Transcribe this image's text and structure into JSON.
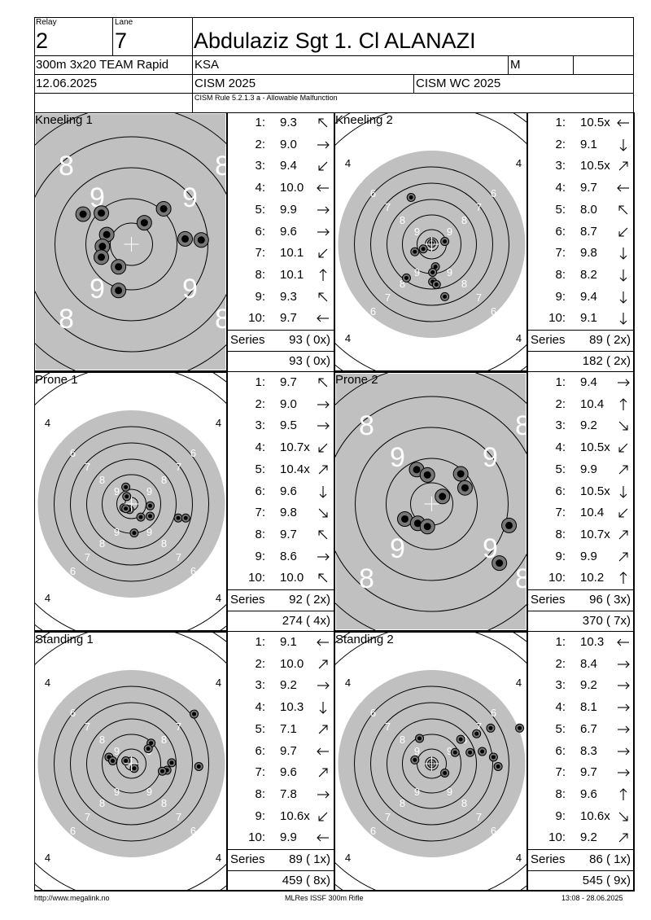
{
  "header": {
    "relay_label": "Relay",
    "relay": "2",
    "lane_label": "Lane",
    "lane": "7",
    "name": "Abdulaziz Sgt 1. Cl ALANAZI",
    "event": "300m 3x20 TEAM Rapid",
    "nation": "KSA",
    "gender": "M",
    "date": "12.06.2025",
    "competition": "CISM 2025",
    "championship": "CISM WC 2025",
    "rule_note": "CISM Rule 5.2.1.3 a - Allowable Malfunction"
  },
  "series_label": "Series",
  "positions": [
    {
      "label": "Kneeling 1",
      "target": "rapid",
      "shots": [
        {
          "n": "1:",
          "v": "9.3",
          "dir": "nw"
        },
        {
          "n": "2:",
          "v": "9.0",
          "dir": "e"
        },
        {
          "n": "3:",
          "v": "9.4",
          "dir": "sw"
        },
        {
          "n": "4:",
          "v": "10.0",
          "dir": "w"
        },
        {
          "n": "5:",
          "v": "9.9",
          "dir": "e"
        },
        {
          "n": "6:",
          "v": "9.6",
          "dir": "e"
        },
        {
          "n": "7:",
          "v": "10.1",
          "dir": "sw"
        },
        {
          "n": "8:",
          "v": "10.1",
          "dir": "n"
        },
        {
          "n": "9:",
          "v": "9.3",
          "dir": "nw"
        },
        {
          "n": "10:",
          "v": "9.7",
          "dir": "w"
        }
      ],
      "series": "93 ( 0x)",
      "total": "93 ( 0x)",
      "hits": [
        [
          -0.28,
          -0.29
        ],
        [
          0.3,
          -0.33
        ],
        [
          -0.45,
          -0.28
        ],
        [
          -0.23,
          -0.09
        ],
        [
          0.12,
          -0.2
        ],
        [
          0.5,
          -0.05
        ],
        [
          -0.27,
          0.02
        ],
        [
          0.65,
          -0.04
        ],
        [
          -0.12,
          0.21
        ],
        [
          -0.12,
          0.43
        ],
        [
          -0.28,
          0.12
        ]
      ]
    },
    {
      "label": "Kneeling 2",
      "target": "std",
      "shots": [
        {
          "n": "1:",
          "v": "10.5x",
          "dir": "w"
        },
        {
          "n": "2:",
          "v": "9.1",
          "dir": "s"
        },
        {
          "n": "3:",
          "v": "10.5x",
          "dir": "ne"
        },
        {
          "n": "4:",
          "v": "9.7",
          "dir": "w"
        },
        {
          "n": "5:",
          "v": "8.0",
          "dir": "nw"
        },
        {
          "n": "6:",
          "v": "8.7",
          "dir": "sw"
        },
        {
          "n": "7:",
          "v": "9.8",
          "dir": "s"
        },
        {
          "n": "8:",
          "v": "8.2",
          "dir": "s"
        },
        {
          "n": "9:",
          "v": "9.4",
          "dir": "s"
        },
        {
          "n": "10:",
          "v": "9.1",
          "dir": "s"
        }
      ],
      "series": "89 ( 2x)",
      "total": "182 ( 2x)",
      "hits": [
        [
          -0.22,
          -0.5
        ],
        [
          0.14,
          -0.03
        ],
        [
          0.0,
          -0.01
        ],
        [
          -0.09,
          0.05
        ],
        [
          -0.18,
          0.08
        ],
        [
          0.04,
          0.24
        ],
        [
          0.01,
          0.3
        ],
        [
          -0.27,
          0.36
        ],
        [
          0.01,
          0.4
        ],
        [
          0.05,
          0.43
        ],
        [
          0.14,
          0.56
        ]
      ]
    },
    {
      "label": "Prone 1",
      "target": "std",
      "shots": [
        {
          "n": "1:",
          "v": "9.7",
          "dir": "nw"
        },
        {
          "n": "2:",
          "v": "9.0",
          "dir": "e"
        },
        {
          "n": "3:",
          "v": "9.5",
          "dir": "e"
        },
        {
          "n": "4:",
          "v": "10.7x",
          "dir": "sw"
        },
        {
          "n": "5:",
          "v": "10.4x",
          "dir": "ne"
        },
        {
          "n": "6:",
          "v": "9.6",
          "dir": "s"
        },
        {
          "n": "7:",
          "v": "9.8",
          "dir": "se"
        },
        {
          "n": "8:",
          "v": "9.7",
          "dir": "nw"
        },
        {
          "n": "9:",
          "v": "8.6",
          "dir": "e"
        },
        {
          "n": "10:",
          "v": "10.0",
          "dir": "nw"
        }
      ],
      "series": "92 ( 2x)",
      "total": "274 ( 4x)",
      "hits": [
        [
          -0.06,
          -0.18
        ],
        [
          -0.05,
          -0.08
        ],
        [
          0.2,
          0.02
        ],
        [
          -0.02,
          0.06
        ],
        [
          -0.08,
          0.04
        ],
        [
          0.1,
          0.14
        ],
        [
          0.2,
          0.13
        ],
        [
          0.5,
          0.15
        ],
        [
          0.58,
          0.15
        ],
        [
          0.03,
          0.31
        ],
        [
          -0.06,
          0.05
        ]
      ]
    },
    {
      "label": "Prone 2",
      "target": "rapid",
      "shots": [
        {
          "n": "1:",
          "v": "9.4",
          "dir": "e"
        },
        {
          "n": "2:",
          "v": "10.4",
          "dir": "n"
        },
        {
          "n": "3:",
          "v": "9.2",
          "dir": "se"
        },
        {
          "n": "4:",
          "v": "10.5x",
          "dir": "sw"
        },
        {
          "n": "5:",
          "v": "9.9",
          "dir": "ne"
        },
        {
          "n": "6:",
          "v": "10.5x",
          "dir": "s"
        },
        {
          "n": "7:",
          "v": "10.4",
          "dir": "sw"
        },
        {
          "n": "8:",
          "v": "10.7x",
          "dir": "ne"
        },
        {
          "n": "9:",
          "v": "9.9",
          "dir": "ne"
        },
        {
          "n": "10:",
          "v": "10.2",
          "dir": "n"
        }
      ],
      "series": "96 ( 3x)",
      "total": "370 ( 7x)",
      "hits": [
        [
          -0.14,
          -0.32
        ],
        [
          -0.04,
          -0.27
        ],
        [
          0.27,
          -0.28
        ],
        [
          0.31,
          -0.15
        ],
        [
          0.1,
          -0.07
        ],
        [
          -0.25,
          0.14
        ],
        [
          -0.13,
          0.18
        ],
        [
          -0.04,
          0.21
        ],
        [
          0.72,
          0.2
        ],
        [
          0.63,
          0.55
        ]
      ]
    },
    {
      "label": "Standing 1",
      "target": "std",
      "shots": [
        {
          "n": "1:",
          "v": "9.1",
          "dir": "w"
        },
        {
          "n": "2:",
          "v": "10.0",
          "dir": "ne"
        },
        {
          "n": "3:",
          "v": "9.2",
          "dir": "e"
        },
        {
          "n": "4:",
          "v": "10.3",
          "dir": "s"
        },
        {
          "n": "5:",
          "v": "7.1",
          "dir": "ne"
        },
        {
          "n": "6:",
          "v": "9.7",
          "dir": "w"
        },
        {
          "n": "7:",
          "v": "9.6",
          "dir": "ne"
        },
        {
          "n": "8:",
          "v": "7.8",
          "dir": "e"
        },
        {
          "n": "9:",
          "v": "10.6x",
          "dir": "sw"
        },
        {
          "n": "10:",
          "v": "9.9",
          "dir": "w"
        }
      ],
      "series": "89 ( 1x)",
      "total": "459 ( 8x)",
      "hits": [
        [
          0.67,
          -0.53
        ],
        [
          0.21,
          -0.22
        ],
        [
          0.18,
          -0.16
        ],
        [
          -0.24,
          -0.07
        ],
        [
          -0.2,
          -0.03
        ],
        [
          -0.06,
          -0.03
        ],
        [
          0.43,
          -0.01
        ],
        [
          0.03,
          0.05
        ],
        [
          0.38,
          0.07
        ],
        [
          0.72,
          0.03
        ],
        [
          0.33,
          0.08
        ]
      ]
    },
    {
      "label": "Standing 2",
      "target": "std",
      "shots": [
        {
          "n": "1:",
          "v": "10.3",
          "dir": "w"
        },
        {
          "n": "2:",
          "v": "8.4",
          "dir": "e"
        },
        {
          "n": "3:",
          "v": "9.2",
          "dir": "e"
        },
        {
          "n": "4:",
          "v": "8.1",
          "dir": "e"
        },
        {
          "n": "5:",
          "v": "6.7",
          "dir": "e"
        },
        {
          "n": "6:",
          "v": "8.3",
          "dir": "e"
        },
        {
          "n": "7:",
          "v": "9.7",
          "dir": "e"
        },
        {
          "n": "8:",
          "v": "9.6",
          "dir": "n"
        },
        {
          "n": "9:",
          "v": "10.6x",
          "dir": "se"
        },
        {
          "n": "10:",
          "v": "9.2",
          "dir": "ne"
        }
      ],
      "series": "86 ( 1x)",
      "total": "545 ( 9x)",
      "hits": [
        [
          0.48,
          -0.32
        ],
        [
          0.63,
          -0.38
        ],
        [
          0.94,
          -0.38
        ],
        [
          -0.13,
          -0.27
        ],
        [
          0.31,
          -0.26
        ],
        [
          0.54,
          -0.13
        ],
        [
          0.25,
          -0.12
        ],
        [
          0.66,
          -0.07
        ],
        [
          -0.18,
          -0.04
        ],
        [
          0.0,
          0.0
        ],
        [
          0.14,
          0.1
        ],
        [
          0.41,
          -0.12
        ],
        [
          0.71,
          0.03
        ]
      ]
    }
  ],
  "footer": {
    "left": "http://www.megalink.no",
    "center": "MLRes ISSF 300m Rifle",
    "right": "13:08 - 28.06.2025"
  }
}
